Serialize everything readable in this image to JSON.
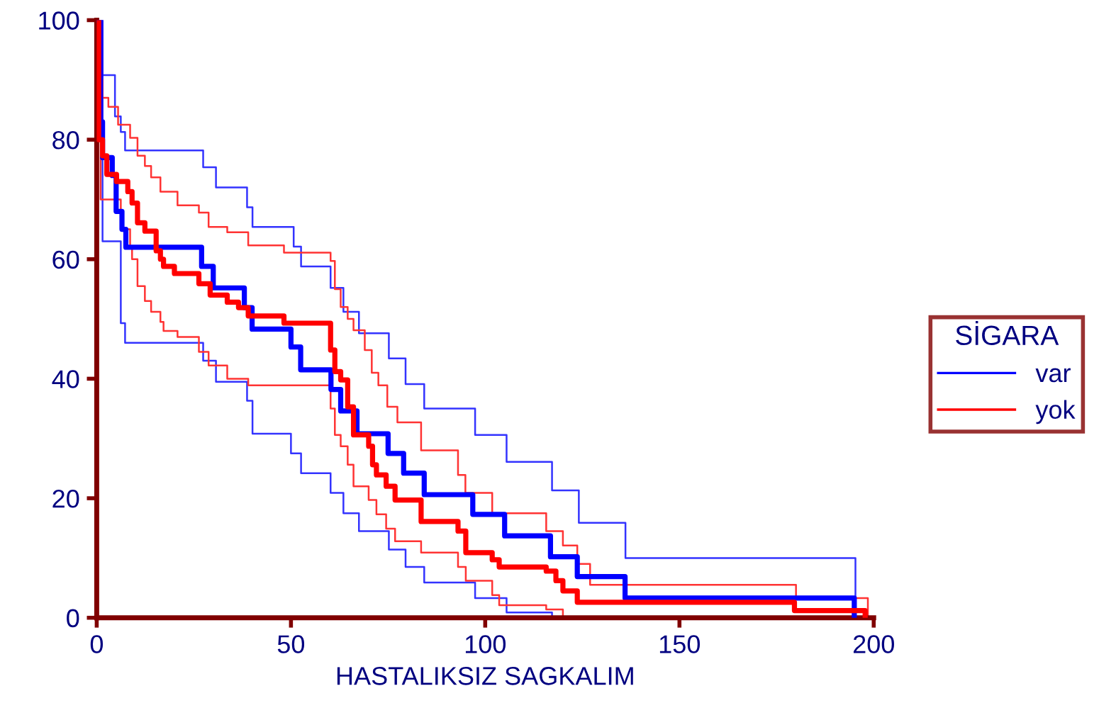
{
  "chart_data": {
    "type": "step",
    "xlabel": "HASTALIKSIZ SAGKALIM",
    "legend_title": "SİGARA",
    "legend": "right",
    "grid": false,
    "marker": "none",
    "line_style": "solid",
    "xlim": [
      0,
      200
    ],
    "xticks": [
      0,
      50,
      100,
      150,
      200
    ],
    "ylim": [
      0,
      100
    ],
    "yticks": [
      0,
      20,
      40,
      60,
      80,
      100
    ],
    "series": [
      {
        "name": "var",
        "color": "#0000ff",
        "x": [
          0,
          1,
          1.5,
          4,
          5,
          6.5,
          7.5,
          27,
          30,
          38,
          40,
          50,
          52.5,
          60.3,
          62.8,
          67,
          75,
          79,
          84.3,
          96.8,
          105,
          116.8,
          123.7,
          136,
          195
        ],
        "values": [
          100,
          83,
          77,
          74,
          68,
          65,
          62,
          58.8,
          55.2,
          51.9,
          48.3,
          45.3,
          41.5,
          38.2,
          34.6,
          30.8,
          27.5,
          24.2,
          20.6,
          17.3,
          13.7,
          10.2,
          6.9,
          3.3,
          0
        ]
      },
      {
        "color": "#3333ff",
        "x": [
          0,
          1.5,
          6.2,
          7.3,
          27.4,
          30.7,
          38.7,
          40.1,
          50,
          52.6,
          60.2,
          63.5,
          67.5,
          75.2,
          79.5,
          84.3,
          97.4,
          105.5,
          117.2
        ],
        "values": [
          100,
          63,
          49.3,
          46,
          43,
          39.5,
          36.3,
          30.8,
          27.5,
          24.2,
          20.9,
          17.5,
          14.5,
          11.4,
          8.5,
          5.9,
          3.3,
          0.9,
          0
        ]
      },
      {
        "color": "#3333ff",
        "x": [
          0,
          1.5,
          4.7,
          6.2,
          7.3,
          27.4,
          30.7,
          38.7,
          40.1,
          50.7,
          52.6,
          60.2,
          63.5,
          67.5,
          75.2,
          79.5,
          84.3,
          97.4,
          105.5,
          117.2,
          124.1,
          136.1,
          195.3
        ],
        "values": [
          100,
          90.8,
          83.9,
          81.3,
          78.2,
          75.4,
          72,
          68.7,
          65.4,
          62.1,
          58.8,
          55.2,
          51.2,
          47.6,
          43.4,
          39.1,
          35,
          30.6,
          26.1,
          21.3,
          15.9,
          10,
          0
        ]
      },
      {
        "name": "yok",
        "color": "#ff0000",
        "x": [
          0,
          0.5,
          1.5,
          2.6,
          5.1,
          8,
          9.1,
          10.5,
          12.4,
          15.3,
          16.4,
          17.2,
          20,
          26.3,
          29.2,
          33.6,
          36.5,
          39,
          48.2,
          60.2,
          61.3,
          62.8,
          64.6,
          66.1,
          70,
          71,
          72,
          74.5,
          76.8,
          83.5,
          93,
          95,
          101.8,
          103.6,
          115.7,
          118.2,
          120,
          123.7,
          179.6,
          197.8
        ],
        "values": [
          100,
          80,
          77.3,
          74.2,
          73,
          71.3,
          69.4,
          66.1,
          64.7,
          61.4,
          60,
          58.8,
          57.6,
          55.9,
          54,
          52.8,
          51.9,
          50.5,
          49.3,
          44.8,
          41.2,
          39.8,
          35.3,
          30.6,
          28.7,
          25.6,
          23.9,
          22,
          19.7,
          16.1,
          14.5,
          10.9,
          9.7,
          8.5,
          7.8,
          6.2,
          4.5,
          2.6,
          1.2,
          0
        ]
      },
      {
        "color": "#ff3333",
        "x": [
          0,
          1,
          6.2,
          8.6,
          9.1,
          10.5,
          12.4,
          14,
          16.4,
          17.2,
          20.8,
          26.3,
          28.8,
          33.6,
          39,
          60.2,
          61.3,
          62.8,
          64.6,
          66.1,
          70,
          72,
          74.5,
          76.8,
          83.5,
          93,
          95,
          101.8,
          103.6,
          115.7,
          120
        ],
        "values": [
          100,
          70,
          65,
          61.8,
          60,
          55.5,
          53,
          51.2,
          49.5,
          48,
          47,
          44.5,
          42.2,
          40,
          38.9,
          35,
          30.6,
          28.7,
          25.6,
          22,
          19.7,
          17.3,
          14.9,
          12.8,
          10.9,
          8.5,
          6.2,
          3.8,
          2.1,
          1.4,
          0
        ]
      },
      {
        "color": "#ff3333",
        "x": [
          0,
          0.5,
          1.5,
          3,
          5.5,
          8.6,
          10.5,
          12.4,
          14,
          16.4,
          20.8,
          26.3,
          28.8,
          33.6,
          39,
          48.2,
          60.2,
          61.3,
          62.8,
          64.6,
          66.1,
          69,
          70.8,
          72.5,
          74.8,
          77.4,
          83.5,
          93,
          94.9,
          101.8,
          115.7,
          120,
          123.7,
          127,
          180,
          198.5
        ],
        "values": [
          100,
          90,
          87,
          85.5,
          82.5,
          80.3,
          77.3,
          75.6,
          73.7,
          71.3,
          69,
          67.8,
          65.4,
          64.5,
          62.3,
          61.1,
          59.7,
          55,
          52,
          50,
          48.1,
          44.8,
          41,
          38.9,
          35.3,
          32.7,
          28,
          23.9,
          20.9,
          17.5,
          14.5,
          12.1,
          9,
          5.5,
          3.3,
          0
        ]
      }
    ]
  }
}
